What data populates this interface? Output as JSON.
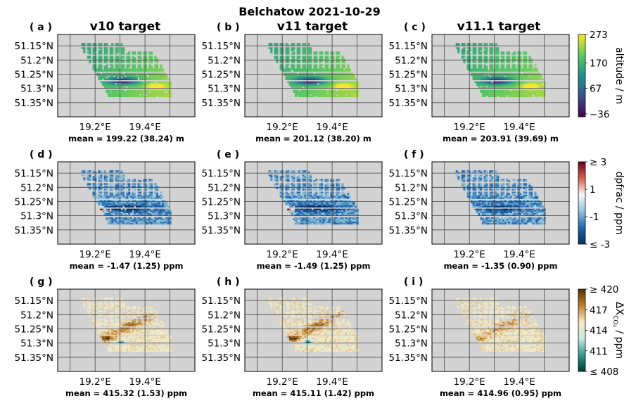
{
  "title": "Belchatow 2021-10-29",
  "columns": [
    "v10 target",
    "v11 target",
    "v11.1 target"
  ],
  "y_ticks": [
    "51.35°N",
    "51.3°N",
    "51.25°N",
    "51.2°N",
    "51.15°N"
  ],
  "x_ticks": [
    "19.2°E",
    "19.4°E"
  ],
  "colorbars": [
    {
      "label": "altitude / m",
      "ticks": [
        "273",
        "170",
        "67",
        "−36"
      ],
      "colors": [
        "#fde725",
        "#5ec962",
        "#21918c",
        "#3b528b",
        "#440154"
      ]
    },
    {
      "label": "dpfrac / ppm",
      "ticks": [
        "≥ 3",
        "1",
        "-1",
        "≤ -3"
      ],
      "colors": [
        "#67001f",
        "#d6604d",
        "#f7f7f7",
        "#92c5de",
        "#2166ac",
        "#053061"
      ]
    },
    {
      "label": "ΔX",
      "label_sub": "CO₂",
      "label_unit": "/ ppm",
      "ticks": [
        "≥ 420",
        "417",
        "414",
        "411",
        "≤ 408"
      ],
      "colors": [
        "#543005",
        "#bf812d",
        "#f6e8c3",
        "#c7eae5",
        "#35978f",
        "#003c30"
      ]
    }
  ],
  "panels": [
    {
      "label": "( a )",
      "mean": "mean = 199.22 (38.24) m"
    },
    {
      "label": "( b )",
      "mean": "mean = 201.12 (38.20) m"
    },
    {
      "label": "( c )",
      "mean": "mean = 203.91 (39.69) m"
    },
    {
      "label": "( d )",
      "mean": "mean = -1.47 (1.25) ppm"
    },
    {
      "label": "( e )",
      "mean": "mean = -1.49 (1.25) ppm"
    },
    {
      "label": "( f )",
      "mean": "mean = -1.35 (0.90) ppm"
    },
    {
      "label": "( g )",
      "mean": "mean = 415.32 (1.53) ppm"
    },
    {
      "label": "( h )",
      "mean": "mean = 415.11 (1.42) ppm"
    },
    {
      "label": "( i )",
      "mean": "mean = 414.96 (0.95) ppm"
    }
  ],
  "chart_data": {
    "type": "heatmap",
    "title": "Belchatow 2021-10-29",
    "panel_titles": [
      "v10 target",
      "v11 target",
      "v11.1 target"
    ],
    "x_range": [
      19.05,
      19.6
    ],
    "y_range": [
      51.1,
      51.39
    ],
    "x_ticks": [
      19.2,
      19.4
    ],
    "y_ticks": [
      51.15,
      51.2,
      51.25,
      51.3,
      51.35
    ],
    "grid": true,
    "rows": [
      {
        "variable": "altitude",
        "unit": "m",
        "clim": [
          -36,
          300
        ],
        "means": [
          199.22,
          201.12,
          203.91
        ],
        "stds": [
          38.24,
          38.2,
          39.69
        ]
      },
      {
        "variable": "dpfrac",
        "unit": "ppm",
        "clim": [
          -3,
          3
        ],
        "means": [
          -1.47,
          -1.49,
          -1.35
        ],
        "stds": [
          1.25,
          1.25,
          0.9
        ]
      },
      {
        "variable": "XCO2",
        "unit": "ppm",
        "clim": [
          408,
          420
        ],
        "means": [
          415.32,
          415.11,
          414.96
        ],
        "stds": [
          1.53,
          1.42,
          0.95
        ]
      }
    ]
  }
}
